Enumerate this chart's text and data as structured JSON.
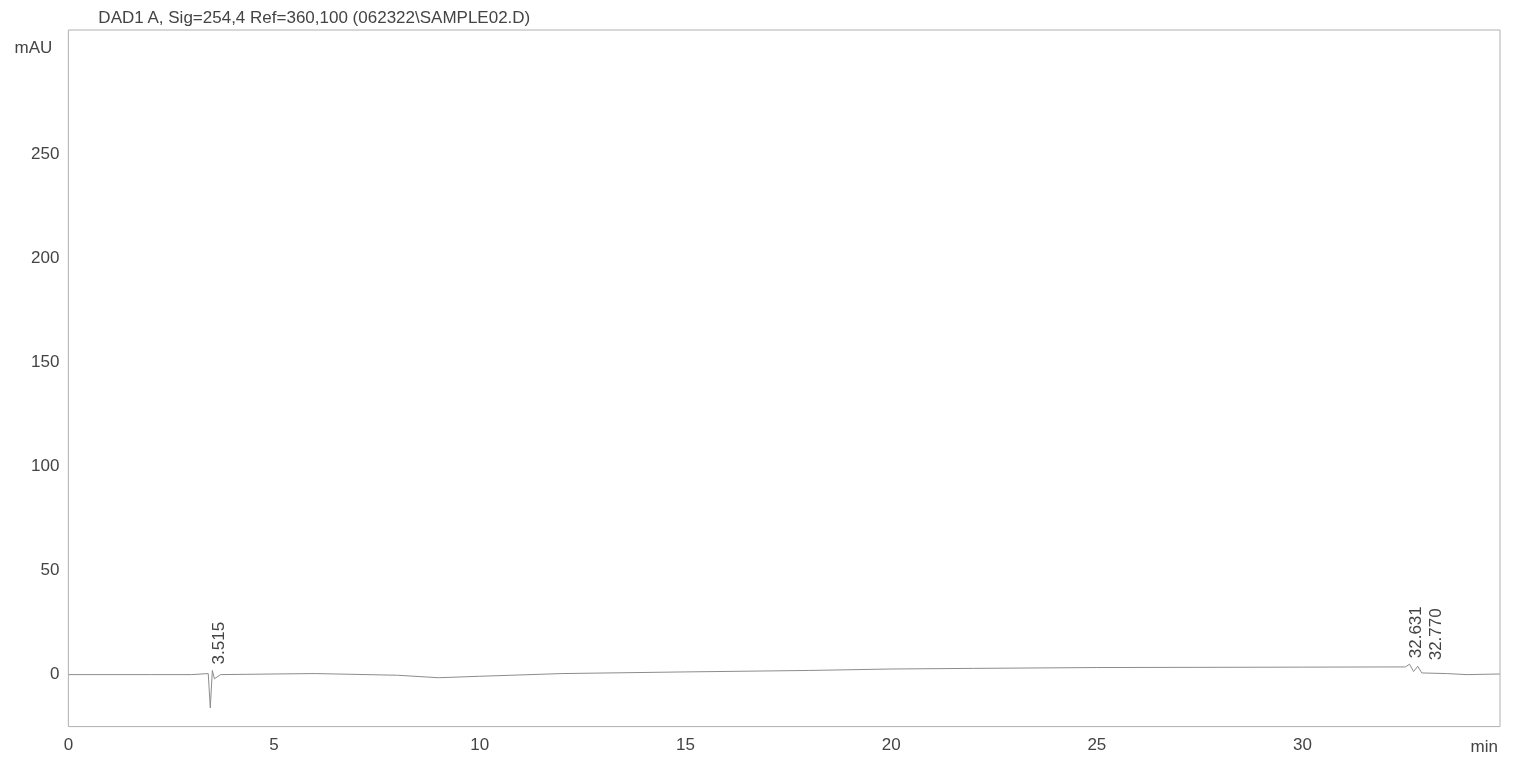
{
  "chart_data": {
    "type": "line",
    "title": "DAD1 A, Sig=254,4 Ref=360,100 (062322\\SAMPLE02.D)",
    "xlabel": "min",
    "ylabel": "mAU",
    "x": [
      0,
      2,
      3,
      3.4,
      3.45,
      3.5,
      3.55,
      3.7,
      5,
      6,
      8,
      9,
      10,
      12,
      15,
      18,
      20,
      22,
      25,
      30,
      32.5,
      32.6,
      32.7,
      32.8,
      32.9,
      33.5,
      34,
      34.8
    ],
    "series": [
      {
        "color": "#8c8c8c",
        "values": [
          0,
          0,
          0,
          0.5,
          -16,
          2,
          -2,
          0,
          0.3,
          0.5,
          -0.3,
          -1.5,
          -0.8,
          0.5,
          1.3,
          2,
          2.7,
          3,
          3.4,
          3.6,
          3.7,
          5,
          1.5,
          4,
          0.8,
          0.5,
          0,
          0.3
        ]
      }
    ],
    "xlim": [
      0,
      34.8
    ],
    "xticks": [
      0,
      5,
      10,
      15,
      20,
      25,
      30
    ],
    "ylim": [
      -25,
      310
    ],
    "yticks": [
      0,
      50,
      100,
      150,
      200,
      250
    ],
    "grid": false,
    "legend": false,
    "marker": "none",
    "line_style": "solid",
    "annotations": [
      {
        "text": "3.515",
        "x": 3.515,
        "y": 2
      },
      {
        "text": "32.631",
        "x": 32.631,
        "y": 5
      },
      {
        "text": "32.770",
        "x": 32.77,
        "y": 4
      }
    ]
  }
}
